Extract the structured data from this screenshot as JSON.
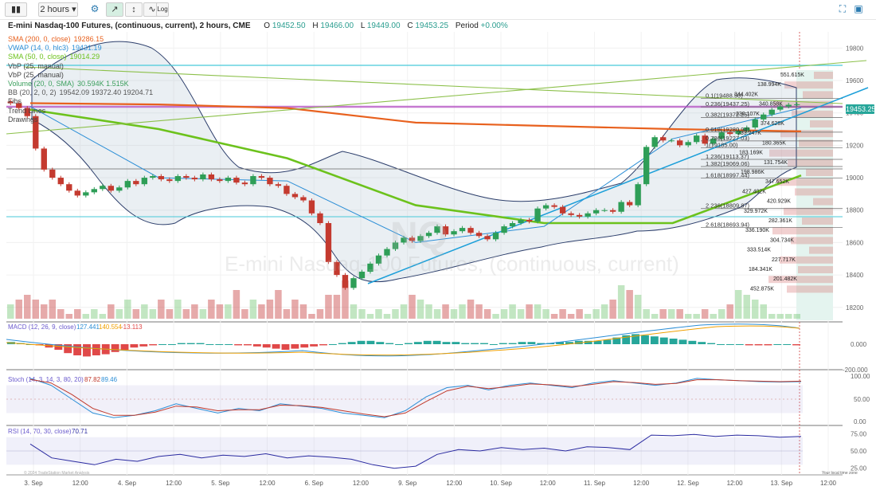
{
  "toolbar": {
    "interval": "2 hours",
    "log_label": "Log"
  },
  "header": {
    "symbol_title": "E-mini Nasdaq-100 Futures, (continuous, current), 2 hours, CME",
    "o_label": "O",
    "o": "19452.50",
    "h_label": "H",
    "h": "19466.00",
    "l_label": "L",
    "l": "19449.00",
    "c_label": "C",
    "c": "19453.25",
    "period_label": "Period",
    "period": "+0.00%"
  },
  "indicators": [
    {
      "label": "SMA (200, 0, close)",
      "value": "19286.15",
      "color": "#e8611e"
    },
    {
      "label": "VWAP (14, 0, hlc3)",
      "value": "19431.19",
      "color": "#2b8ed6"
    },
    {
      "label": "SMA (50, 0, close)",
      "value": "19014.29",
      "color": "#6cc21c"
    },
    {
      "label": "VbP (25, manual)",
      "value": "",
      "color": "#444444"
    },
    {
      "label": "VbP (25, manual)",
      "value": "",
      "color": "#444444"
    },
    {
      "label": "Volume (20, 0, SMA)",
      "value": "30.594K  1.515K",
      "color": "#3a9e5b"
    },
    {
      "label": "BB (20, 2, 0, 2)",
      "value": "19542.09  19372.40  19204.71",
      "color": "#555555"
    },
    {
      "label": "Fibs",
      "value": "",
      "color": "#444444"
    },
    {
      "label": "Trend Lines",
      "value": "",
      "color": "#444444"
    },
    {
      "label": "Drawings",
      "value": "",
      "color": "#444444"
    }
  ],
  "watermark": {
    "symbol": "NQ",
    "name": "E-mini Nasdaq-100 Futures, (continuous, current)"
  },
  "price_tag": "19453.25",
  "colors": {
    "up": "#2e9e57",
    "down": "#c43a2f",
    "sma200": "#e8611e",
    "sma50": "#6cc21c",
    "vwap": "#2b8ed6",
    "trend": "#1b9fd9",
    "magenta": "#b44ec2",
    "cyan": "#48c9d9"
  },
  "chart_data": [
    {
      "type": "line",
      "title": "E-mini Nasdaq-100 Futures, (continuous, current), 2 hours, CME",
      "panel": "price",
      "y_ticks": [
        19800,
        19600,
        19400,
        19200,
        19000,
        18800,
        18600,
        18400,
        18200
      ],
      "ylim": [
        18130,
        19900
      ],
      "x_tick_labels": [
        "3. Sep",
        "12:00",
        "4. Sep",
        "12:00",
        "5. Sep",
        "12:00",
        "6. Sep",
        "12:00",
        "9. Sep",
        "12:00",
        "10. Sep",
        "12:00",
        "11. Sep",
        "12:00",
        "12. Sep",
        "12:00",
        "13. Sep",
        "12:00"
      ],
      "candles_close": [
        19460,
        19430,
        19380,
        19180,
        19050,
        19000,
        18960,
        18920,
        18890,
        18910,
        18930,
        18950,
        18920,
        18940,
        18980,
        18960,
        19000,
        19010,
        18990,
        18980,
        19010,
        19000,
        18990,
        19020,
        18990,
        18980,
        19000,
        18970,
        18960,
        19010,
        19000,
        18960,
        18950,
        18900,
        18880,
        18860,
        18780,
        18720,
        18480,
        18400,
        18320,
        18380,
        18420,
        18470,
        18520,
        18560,
        18600,
        18630,
        18610,
        18640,
        18660,
        18700,
        18650,
        18670,
        18690,
        18660,
        18640,
        18620,
        18660,
        18700,
        18720,
        18740,
        18730,
        18810,
        18830,
        18820,
        18780,
        18770,
        18760,
        18780,
        18800,
        18800,
        18790,
        18850,
        18830,
        18960,
        19190,
        19250,
        19230,
        19230,
        19200,
        19220,
        19260,
        19210,
        19240,
        19280,
        19270,
        19290,
        19310,
        19360,
        19390,
        19420,
        19440,
        19450,
        19453
      ],
      "series": [
        {
          "name": "SMA (200, 0, close)",
          "values": [
            19460,
            19452,
            19430,
            19340,
            19320,
            19300,
            19286
          ]
        },
        {
          "name": "SMA (50, 0, close)",
          "values": [
            19420,
            19300,
            19120,
            18830,
            18720,
            18720,
            19014
          ]
        },
        {
          "name": "VWAP (14, 0, hlc3)",
          "values": [
            19440,
            19000,
            18980,
            18600,
            18700,
            19240,
            19431
          ]
        }
      ],
      "fib_levels": [
        {
          "label": "0.1(19488.50)",
          "value": 19488.5
        },
        {
          "label": "0.236(19437.25)",
          "value": 19437.25
        },
        {
          "label": "0.382(19372.25)",
          "value": 19372.25
        },
        {
          "label": "0.618(19280.94)",
          "value": 19280.94
        },
        {
          "label": "0.786(19227.03)",
          "value": 19227.03
        },
        {
          "label": "1(19185.00)",
          "value": 19185.0
        },
        {
          "label": "1.236(19113.37)",
          "value": 19113.37
        },
        {
          "label": "1.382(19069.06)",
          "value": 19069.06
        },
        {
          "label": "1.618(18997.44)",
          "value": 18997.44
        },
        {
          "label": "2.236(18809.87)",
          "value": 18809.87
        },
        {
          "label": "2.618(18693.94)",
          "value": 18693.94
        }
      ],
      "vbp_labels": [
        "551.615K",
        "138.994K",
        "344.402K",
        "340.858K",
        "230.107K",
        "374.628K",
        "233.247K",
        "180.365K",
        "183.169K",
        "131.754K",
        "198.986K",
        "347.652K",
        "427.402K",
        "420.929K",
        "329.972K",
        "282.361K",
        "336.190K",
        "304.734K",
        "333.514K",
        "227.717K",
        "184.341K",
        "201.482K",
        "452.875K"
      ]
    },
    {
      "type": "bar",
      "panel": "volume",
      "title": "Volume (20, 0, SMA)",
      "values": [
        3,
        4,
        5,
        4,
        3,
        4,
        2,
        1,
        2,
        1,
        2,
        1,
        3,
        2,
        4,
        2,
        3,
        2,
        4,
        2,
        4,
        2,
        3,
        2,
        4,
        3,
        3,
        6,
        2,
        4,
        3,
        4,
        6,
        2,
        4,
        3,
        1,
        2,
        5,
        5,
        8,
        3,
        2,
        1,
        2,
        1,
        2,
        3,
        5,
        4,
        3,
        2,
        3,
        2,
        3,
        4,
        3,
        2,
        1,
        2,
        3,
        2,
        3,
        3,
        2,
        1,
        2,
        1,
        2,
        1,
        2,
        3,
        4,
        7,
        6,
        5,
        2,
        1,
        2,
        2,
        2,
        1,
        1,
        2,
        1,
        2,
        3,
        6,
        5,
        4,
        3,
        1,
        1,
        1,
        1
      ]
    },
    {
      "type": "bar",
      "panel": "macd",
      "title": "MACD (12, 26, 9, close)",
      "legend_values": [
        "127.441",
        "140.554",
        "-13.113"
      ],
      "y_ticks": [
        "0.000",
        "-200.000"
      ],
      "values": [
        2,
        1,
        0,
        -1,
        -3,
        -5,
        -8,
        -10,
        -11,
        -10,
        -9,
        -7,
        -5,
        -3,
        -2,
        -1,
        0,
        0,
        1,
        1,
        1,
        0,
        0,
        0,
        -1,
        -1,
        -2,
        -3,
        -4,
        -5,
        -4,
        -3,
        -2,
        -1,
        0,
        1,
        2,
        3,
        3,
        2,
        1,
        0,
        1,
        2,
        3,
        3,
        2,
        2,
        1,
        1,
        1,
        0,
        1,
        1,
        2,
        2,
        1,
        1,
        2,
        2,
        3,
        3,
        3,
        4,
        6,
        8,
        9,
        8,
        7,
        6,
        5,
        4,
        3,
        2,
        1,
        0,
        0,
        0,
        -1,
        -1,
        -1,
        0,
        0,
        -1
      ]
    },
    {
      "type": "line",
      "panel": "stoch",
      "title": "Stoch (14, 3, 14, 3, 80, 20)",
      "legend_values": [
        "87.82",
        "89.46"
      ],
      "y_ticks": [
        "100.00",
        "50.00",
        "0.00"
      ],
      "ylim": [
        0,
        100
      ],
      "series": [
        {
          "name": "%K",
          "values": [
            95,
            80,
            50,
            20,
            10,
            15,
            25,
            40,
            30,
            20,
            30,
            25,
            40,
            35,
            30,
            20,
            15,
            10,
            25,
            55,
            75,
            80,
            70,
            80,
            85,
            80,
            75,
            85,
            90,
            85,
            80,
            85,
            95,
            92,
            90,
            88,
            87,
            88
          ]
        },
        {
          "name": "%D",
          "values": [
            93,
            85,
            60,
            30,
            15,
            15,
            22,
            35,
            33,
            25,
            27,
            27,
            37,
            36,
            32,
            25,
            18,
            12,
            20,
            45,
            68,
            78,
            73,
            77,
            83,
            81,
            77,
            82,
            88,
            86,
            82,
            84,
            92,
            92,
            90,
            89,
            88,
            89
          ]
        }
      ]
    },
    {
      "type": "line",
      "panel": "rsi",
      "title": "RSI (14, 70, 30, close)",
      "legend_values": [
        "70.71"
      ],
      "y_ticks": [
        "75.00",
        "50.00",
        "25.00"
      ],
      "ylim": [
        20,
        80
      ],
      "series": [
        {
          "name": "RSI",
          "values": [
            60,
            40,
            35,
            30,
            38,
            35,
            42,
            45,
            40,
            44,
            42,
            46,
            40,
            43,
            41,
            38,
            30,
            25,
            28,
            45,
            52,
            50,
            55,
            52,
            54,
            50,
            56,
            55,
            52,
            73,
            72,
            74,
            71,
            73,
            72,
            70,
            71
          ]
        }
      ]
    }
  ],
  "footer": {
    "local_time": "Your local time zone",
    "copyright": "© 2024 TradeStation Market Analysis"
  }
}
